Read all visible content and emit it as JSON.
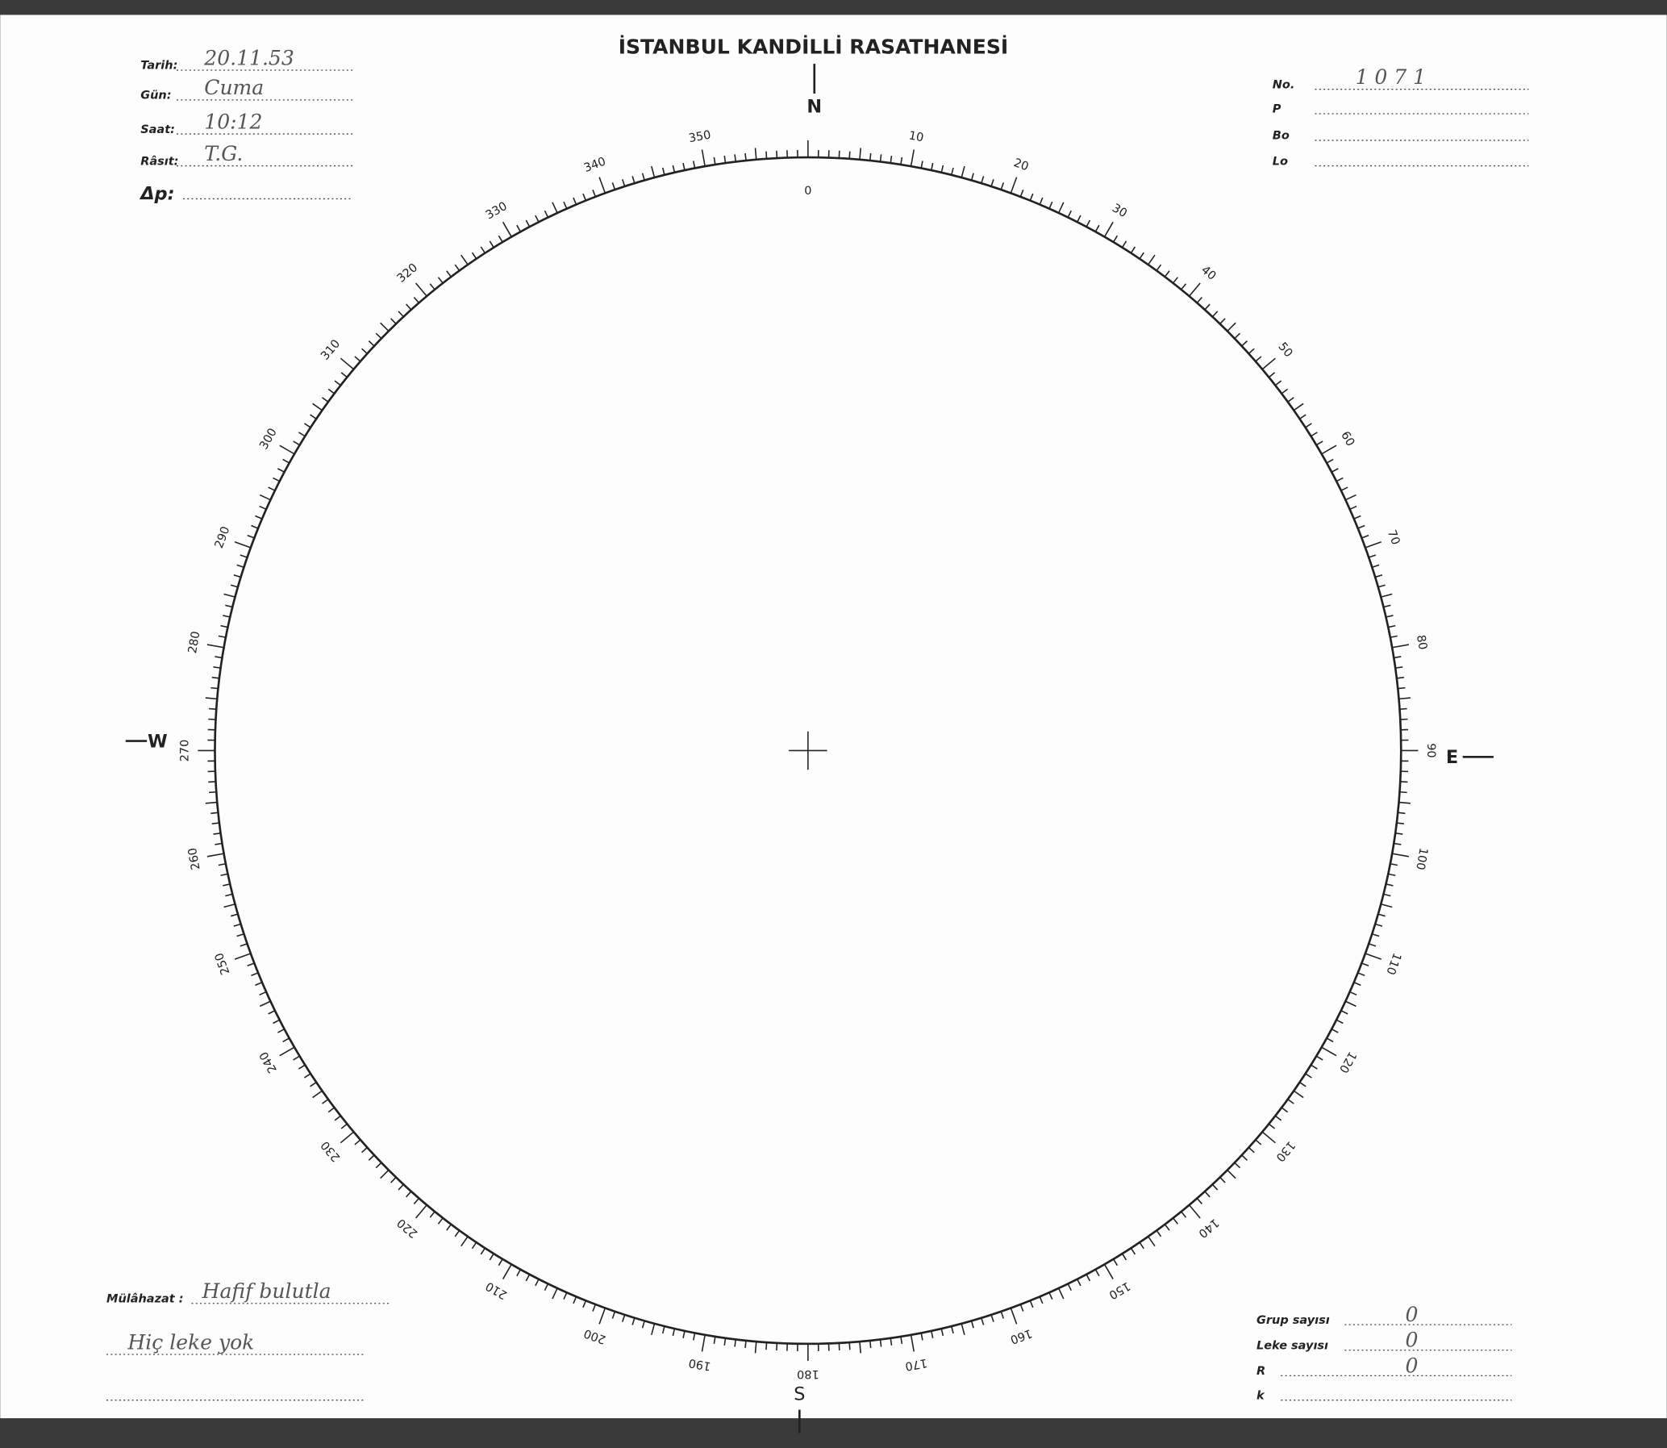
{
  "header": {
    "title": "İSTANBUL KANDİLLİ RASATHANESİ"
  },
  "left_fields": [
    {
      "label": "Tarih:",
      "value": "20.11.53"
    },
    {
      "label": "Gün:",
      "value": "Cuma"
    },
    {
      "label": "Saat:",
      "value": "10:12"
    },
    {
      "label": "Râsıt:",
      "value": "T.G."
    },
    {
      "label": "Δp:"
    }
  ],
  "right_fields": [
    {
      "label": "No.",
      "value": "1071"
    },
    {
      "label": "P"
    },
    {
      "label": "Bo"
    },
    {
      "label": "Lo"
    }
  ],
  "compass": {
    "north": "N",
    "east": "E",
    "south": "S",
    "west": "W"
  },
  "dial": {
    "degrees": [
      0,
      10,
      20,
      30,
      40,
      50,
      60,
      70,
      80,
      90,
      100,
      110,
      120,
      130,
      140,
      150,
      160,
      170,
      180,
      190,
      200,
      210,
      220,
      230,
      240,
      250,
      260,
      270,
      280,
      290,
      300,
      310,
      320,
      330,
      340,
      350
    ]
  },
  "notes": {
    "label": "Mülâhazat :",
    "lines": [
      "Hafif bulutla",
      "Hiç leke yok"
    ]
  },
  "counts": [
    {
      "label": "Grup sayısı",
      "value": "0"
    },
    {
      "label": "Leke sayısı",
      "value": "0"
    },
    {
      "label": "R",
      "value": "0"
    },
    {
      "label": "k"
    }
  ]
}
